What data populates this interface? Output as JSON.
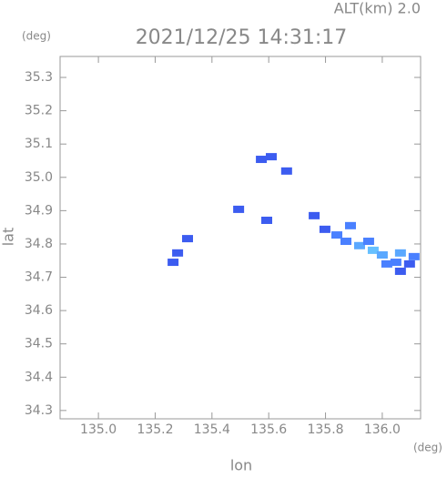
{
  "chart_data": {
    "type": "scatter",
    "title": "2021/12/25 14:31:17",
    "subtitle": "ALT(km) 2.0",
    "x_label": "lon",
    "y_label": "lat",
    "x_unit": "(deg)",
    "y_unit": "(deg)",
    "xlim": [
      134.865,
      136.135
    ],
    "ylim": [
      34.275,
      35.363
    ],
    "xticks": [
      {
        "value": 135.0,
        "label": "135.0"
      },
      135.2,
      135.4,
      135.6,
      135.8,
      {
        "value": 136.0,
        "label": "136.0"
      }
    ],
    "yticks": [
      34.3,
      34.4,
      34.5,
      34.6,
      34.7,
      34.8,
      34.9,
      {
        "value": 35.0,
        "label": "35.0"
      },
      35.1,
      35.2,
      35.3
    ],
    "x": [
      135.609,
      135.574,
      135.663,
      135.494,
      135.593,
      135.314,
      135.279,
      135.263,
      135.76,
      135.798,
      135.84,
      135.888,
      135.872,
      135.92,
      135.968,
      136.0,
      136.048,
      136.096,
      136.112,
      136.064,
      135.952,
      136.064,
      136.016
    ],
    "values": [
      35.062,
      35.054,
      35.019,
      34.904,
      34.871,
      34.816,
      34.773,
      34.745,
      34.885,
      34.844,
      34.827,
      34.855,
      34.808,
      34.795,
      34.781,
      34.767,
      34.745,
      34.74,
      34.762,
      34.773,
      34.808,
      34.718,
      34.74
    ],
    "colors": [
      "#3c5cf0",
      "#3c5cf0",
      "#3c5cf0",
      "#3c5cf0",
      "#3c5cf0",
      "#3c5cf0",
      "#3c5cf0",
      "#3c5cf0",
      "#3c5cf0",
      "#3c5cf0",
      "#4a80ff",
      "#4a80ff",
      "#4a80ff",
      "#5aa8ff",
      "#66c0ff",
      "#5aa8ff",
      "#4a80ff",
      "#3c5cf0",
      "#4a80ff",
      "#5aa8ff",
      "#4a80ff",
      "#3c5cf0",
      "#4a80ff"
    ]
  }
}
